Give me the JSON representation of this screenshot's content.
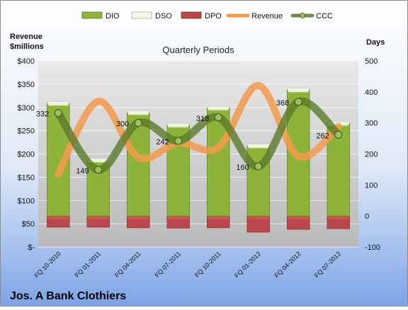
{
  "chart_data": {
    "type": "bar",
    "company": "Jos. A Bank Clothiers",
    "title": "Quarterly Periods",
    "left_axis_label": [
      "Revenue",
      "$millions"
    ],
    "right_axis_label": "Days",
    "legend_placement": "top",
    "categories": [
      "FQ 10-2010",
      "FQ 01-2011",
      "FQ 04-2011",
      "FQ 07-2011",
      "FQ 10-2011",
      "FQ 01-2012",
      "FQ 04-2012",
      "FQ 07-2012"
    ],
    "left_axis": {
      "min": 0,
      "max": 400,
      "step": 50,
      "tick_labels": [
        "$-",
        "$50",
        "$100",
        "$150",
        "$200",
        "$250",
        "$300",
        "$350",
        "$400"
      ]
    },
    "right_axis": {
      "min": -100,
      "max": 500,
      "step": 100,
      "tick_labels": [
        "-100",
        "0",
        "100",
        "200",
        "300",
        "400",
        "500"
      ]
    },
    "grid": true,
    "series": [
      {
        "name": "DIO",
        "kind": "bar",
        "axis": "right",
        "color": "#8db33a",
        "values": [
          365,
          182,
          335,
          295,
          350,
          228,
          408,
          300
        ]
      },
      {
        "name": "DSO",
        "kind": "bar",
        "axis": "right",
        "color": "#f4f7e6",
        "values": [
          3,
          3,
          3,
          3,
          3,
          3,
          3,
          3
        ]
      },
      {
        "name": "DPO",
        "kind": "bar",
        "axis": "right",
        "color": "#b9484d",
        "values": [
          -36,
          -36,
          -38,
          -39,
          -38,
          -52,
          -43,
          -41
        ]
      },
      {
        "name": "Revenue",
        "kind": "line",
        "axis": "left",
        "color": "#f59a4c",
        "values": [
          157,
          313,
          193,
          224,
          214,
          347,
          195,
          259
        ]
      },
      {
        "name": "CCC",
        "kind": "line",
        "axis": "right",
        "color": "#5b7a2b",
        "values": [
          332,
          149,
          300,
          242,
          318,
          160,
          368,
          262
        ]
      }
    ],
    "ccc_labels": [
      "332",
      "149",
      "300",
      "242",
      "318",
      "160",
      "368",
      "262"
    ]
  }
}
